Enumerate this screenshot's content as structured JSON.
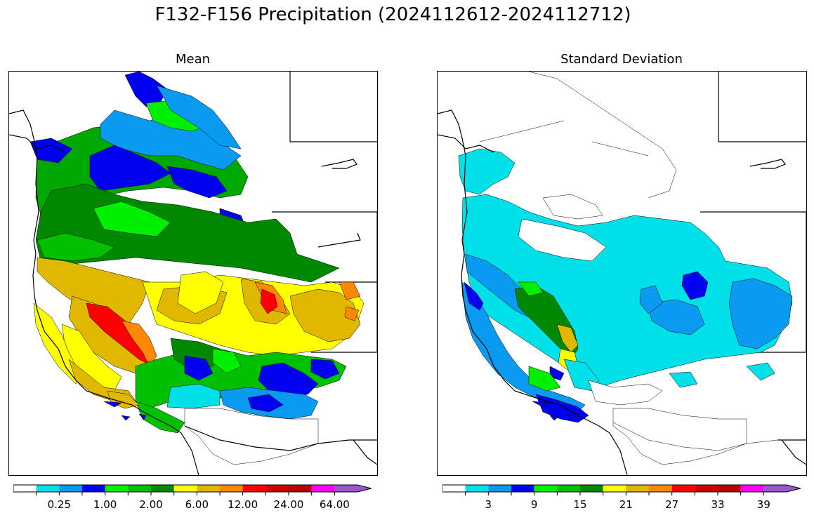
{
  "title": "F132-F156 Precipitation (2024112612-2024112712)",
  "panels": {
    "left": {
      "title": "Mean"
    },
    "right": {
      "title": "Standard Deviation"
    }
  },
  "colorbars": {
    "left": {
      "tick_labels": [
        "0.25",
        "1.00",
        "2.00",
        "6.00",
        "12.00",
        "24.00",
        "64.00"
      ],
      "tick_bins": [
        1,
        3,
        5,
        7,
        9,
        11,
        13
      ]
    },
    "right": {
      "tick_labels": [
        "3",
        "9",
        "15",
        "21",
        "27",
        "33",
        "39"
      ],
      "tick_bins": [
        1,
        3,
        5,
        7,
        9,
        11,
        13
      ]
    },
    "colors": [
      "#ffffff",
      "#00e0e8",
      "#0a9af0",
      "#0000f0",
      "#00f000",
      "#00c000",
      "#008800",
      "#ffff00",
      "#e0b800",
      "#ff8800",
      "#ff0000",
      "#d00000",
      "#b80000",
      "#ff00ff",
      "#9955cc"
    ],
    "extend": "max"
  }
}
